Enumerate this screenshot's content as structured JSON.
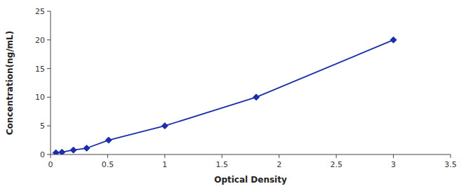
{
  "chart_data": {
    "type": "line",
    "x": [
      0.047,
      0.1,
      0.2,
      0.316,
      0.508,
      1.0,
      1.8,
      3.0
    ],
    "values": [
      0.3,
      0.4,
      0.78,
      1.1,
      2.5,
      5.0,
      10.0,
      20.0
    ],
    "color": "#1c2eaa",
    "marker": "diamond",
    "xlabel": "Optical Density",
    "ylabel": "Concentration(ng/mL)",
    "xlim": [
      0,
      3.5
    ],
    "ylim": [
      0,
      25
    ],
    "xticks": [
      0,
      0.5,
      1,
      1.5,
      2,
      2.5,
      3,
      3.5
    ],
    "yticks": [
      0,
      5,
      10,
      15,
      20,
      25
    ],
    "grid": false
  }
}
